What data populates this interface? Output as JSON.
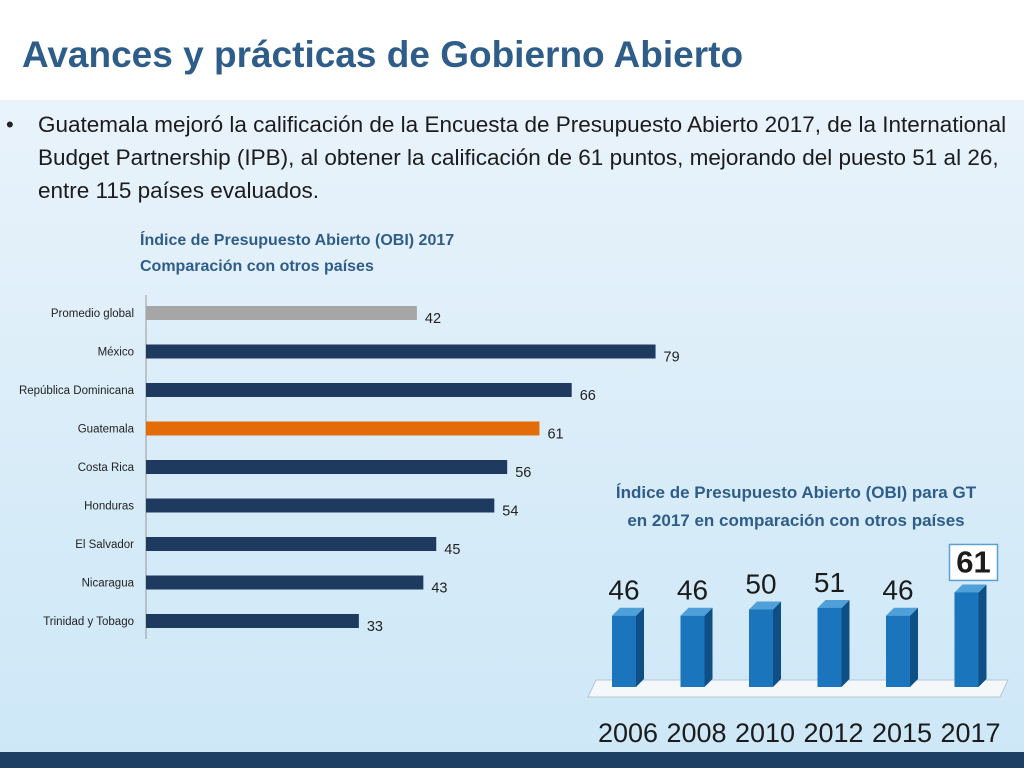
{
  "slide": {
    "title": "Avances y prácticas de Gobierno Abierto",
    "bullet": "Guatemala mejoró la calificación de la Encuesta de Presupuesto Abierto 2017, de la International Budget Partnership (IPB), al obtener la calificación de 61 puntos, mejorando del puesto 51 al 26, entre 115 países evaluados."
  },
  "colors": {
    "title": "#2f5d8a",
    "bar_default": "#1f3a5f",
    "bar_global": "#a6a6a6",
    "bar_highlight": "#e36c09",
    "column": "#1a75bd",
    "footer": "#1d3f63"
  },
  "chart_data": [
    {
      "type": "bar",
      "orientation": "horizontal",
      "title": "Índice de Presupuesto Abierto (OBI) 2017",
      "subtitle": "Comparación con otros países",
      "categories": [
        "Promedio global",
        "México",
        "República Dominicana",
        "Guatemala",
        "Costa Rica",
        "Honduras",
        "El Salvador",
        "Nicaragua",
        "Trinidad y Tobago"
      ],
      "values": [
        42,
        79,
        66,
        61,
        56,
        54,
        45,
        43,
        33
      ],
      "bar_colors": [
        "#a6a6a6",
        "#1f3a5f",
        "#1f3a5f",
        "#e36c09",
        "#1f3a5f",
        "#1f3a5f",
        "#1f3a5f",
        "#1f3a5f",
        "#1f3a5f"
      ],
      "data_labels": true,
      "xlim": [
        0,
        100
      ],
      "grid": false
    },
    {
      "type": "bar",
      "orientation": "vertical",
      "style": "3d",
      "title": "Índice de Presupuesto Abierto (OBI) para GT en 2017 en comparación con otros países",
      "categories": [
        "2006",
        "2008",
        "2010",
        "2012",
        "2015",
        "2017"
      ],
      "values": [
        46,
        46,
        50,
        51,
        46,
        61
      ],
      "highlight": "2017",
      "data_labels": true,
      "grid": false
    }
  ]
}
